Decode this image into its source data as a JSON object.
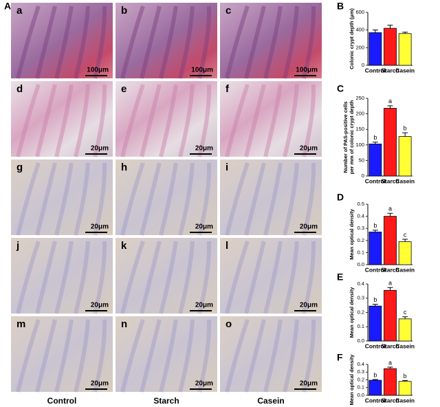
{
  "figure_label": "A",
  "image_panels": [
    {
      "letter": "a",
      "scale": "100μm"
    },
    {
      "letter": "b",
      "scale": "100μm"
    },
    {
      "letter": "c",
      "scale": "100μm"
    },
    {
      "letter": "d",
      "scale": "20μm"
    },
    {
      "letter": "e",
      "scale": "20μm"
    },
    {
      "letter": "f",
      "scale": "20μm"
    },
    {
      "letter": "g",
      "scale": "20μm"
    },
    {
      "letter": "h",
      "scale": "20μm"
    },
    {
      "letter": "i",
      "scale": "20μm"
    },
    {
      "letter": "j",
      "scale": "20μm"
    },
    {
      "letter": "k",
      "scale": "20μm"
    },
    {
      "letter": "l",
      "scale": "20μm"
    },
    {
      "letter": "m",
      "scale": "20μm"
    },
    {
      "letter": "n",
      "scale": "20μm"
    },
    {
      "letter": "o",
      "scale": "20μm"
    }
  ],
  "column_labels": [
    "Control",
    "Starch",
    "Casein"
  ],
  "chart_data": [
    {
      "type": "bar",
      "label": "B",
      "ylabel": [
        "Colonic crypt depth (μm)"
      ],
      "categories": [
        "Control",
        "Starch",
        "Casein"
      ],
      "values": [
        370,
        420,
        360
      ],
      "errors": [
        30,
        35,
        15
      ],
      "colors": [
        "#1a1aff",
        "#ff1a1a",
        "#ffff33"
      ],
      "ylim": [
        0,
        600
      ],
      "yticks": [
        0,
        200,
        400,
        600
      ]
    },
    {
      "type": "bar",
      "label": "C",
      "ylabel": [
        "Number of PAS-positive cells",
        "per mm of colonic crypt depth"
      ],
      "categories": [
        "Control",
        "Starch",
        "Casein"
      ],
      "values": [
        103,
        218,
        127
      ],
      "errors": [
        6,
        8,
        12
      ],
      "colors": [
        "#1a1aff",
        "#ff1a1a",
        "#ffff33"
      ],
      "annotations": [
        "b",
        "a",
        "b"
      ],
      "ylim": [
        0,
        250
      ],
      "yticks": [
        0,
        50,
        100,
        150,
        200,
        250
      ]
    },
    {
      "type": "bar",
      "label": "D",
      "ylabel": [
        "Mean optical density"
      ],
      "categories": [
        "Control",
        "Starch",
        "Casein"
      ],
      "values": [
        0.27,
        0.4,
        0.19
      ],
      "errors": [
        0.015,
        0.025,
        0.02
      ],
      "colors": [
        "#1a1aff",
        "#ff1a1a",
        "#ffff33"
      ],
      "annotations": [
        "b",
        "a",
        "c"
      ],
      "ylim": [
        0,
        0.5
      ],
      "yticks": [
        {
          "value": 0,
          "label": "0.0"
        },
        0.1,
        0.2,
        0.3,
        0.4,
        0.5
      ]
    },
    {
      "type": "bar",
      "label": "E",
      "ylabel": [
        "Mean optical density"
      ],
      "categories": [
        "Control",
        "Starch",
        "Casein"
      ],
      "values": [
        0.245,
        0.355,
        0.155
      ],
      "errors": [
        0.012,
        0.02,
        0.015
      ],
      "colors": [
        "#1a1aff",
        "#ff1a1a",
        "#ffff33"
      ],
      "annotations": [
        "b",
        "a",
        "c"
      ],
      "ylim": [
        0,
        0.4
      ],
      "yticks": [
        {
          "value": 0,
          "label": "0.0"
        },
        0.1,
        0.2,
        0.3,
        0.4
      ]
    },
    {
      "type": "bar",
      "label": "F",
      "ylabel": [
        "Mean optical density"
      ],
      "categories": [
        "Control",
        "Starch",
        "Casein"
      ],
      "values": [
        0.195,
        0.345,
        0.18
      ],
      "errors": [
        0.01,
        0.02,
        0.012
      ],
      "colors": [
        "#1a1aff",
        "#ff1a1a",
        "#ffff33"
      ],
      "annotations": [
        "b",
        "a",
        "b"
      ],
      "ylim": [
        0,
        0.4
      ],
      "yticks": [
        {
          "value": 0,
          "label": "0.0"
        },
        0.1,
        0.2,
        0.3,
        0.4
      ]
    }
  ]
}
